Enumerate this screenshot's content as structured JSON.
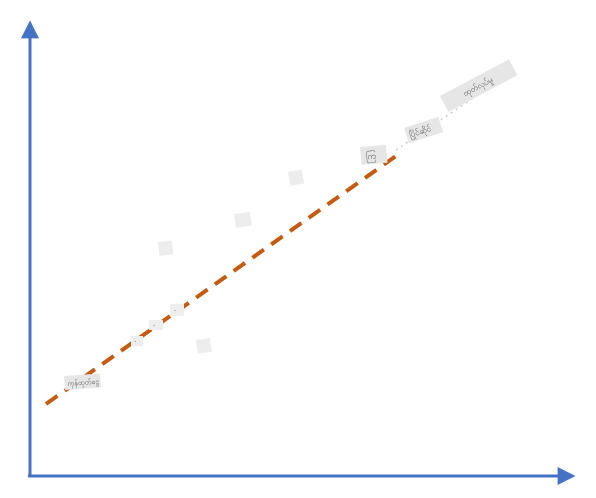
{
  "diagram": {
    "colors": {
      "axis": "#4472C4",
      "trend": "#C55A11",
      "label_bg": "#e6e6e6",
      "label_text": "#555555"
    },
    "labels": [
      {
        "id": "label-near-origin",
        "text": "ကုန်ထုတ်ငွေ"
      },
      {
        "id": "label-mid-1",
        "text": "·"
      },
      {
        "id": "label-mid-2",
        "text": "·"
      },
      {
        "id": "label-mid-3",
        "text": "·"
      },
      {
        "id": "label-upper-1",
        "text": "ကြ"
      },
      {
        "id": "label-upper-2",
        "text": "ပြိုင်ဆိုင်"
      },
      {
        "id": "label-top-right",
        "text": "ထုတ်လုပ်မှု"
      }
    ]
  }
}
